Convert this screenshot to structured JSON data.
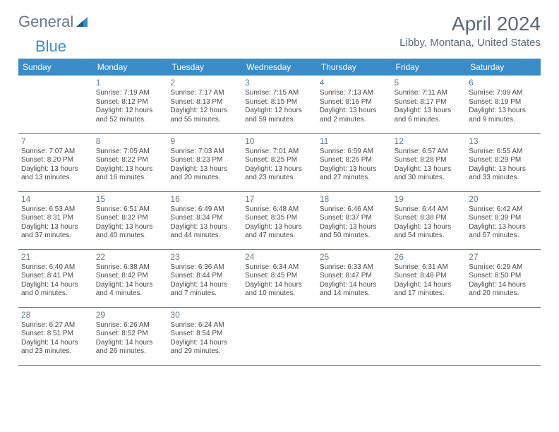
{
  "logo": {
    "text1": "General",
    "text2": "Blue"
  },
  "title": "April 2024",
  "location": "Libby, Montana, United States",
  "colors": {
    "accent": "#3a8cc9",
    "header_text": "#ffffff",
    "muted": "#6a7a88",
    "body": "#4a4a4a"
  },
  "day_headers": [
    "Sunday",
    "Monday",
    "Tuesday",
    "Wednesday",
    "Thursday",
    "Friday",
    "Saturday"
  ],
  "weeks": [
    [
      null,
      {
        "n": "1",
        "sr": "Sunrise: 7:19 AM",
        "ss": "Sunset: 8:12 PM",
        "d1": "Daylight: 12 hours",
        "d2": "and 52 minutes."
      },
      {
        "n": "2",
        "sr": "Sunrise: 7:17 AM",
        "ss": "Sunset: 8:13 PM",
        "d1": "Daylight: 12 hours",
        "d2": "and 55 minutes."
      },
      {
        "n": "3",
        "sr": "Sunrise: 7:15 AM",
        "ss": "Sunset: 8:15 PM",
        "d1": "Daylight: 12 hours",
        "d2": "and 59 minutes."
      },
      {
        "n": "4",
        "sr": "Sunrise: 7:13 AM",
        "ss": "Sunset: 8:16 PM",
        "d1": "Daylight: 13 hours",
        "d2": "and 2 minutes."
      },
      {
        "n": "5",
        "sr": "Sunrise: 7:11 AM",
        "ss": "Sunset: 8:17 PM",
        "d1": "Daylight: 13 hours",
        "d2": "and 6 minutes."
      },
      {
        "n": "6",
        "sr": "Sunrise: 7:09 AM",
        "ss": "Sunset: 8:19 PM",
        "d1": "Daylight: 13 hours",
        "d2": "and 9 minutes."
      }
    ],
    [
      {
        "n": "7",
        "sr": "Sunrise: 7:07 AM",
        "ss": "Sunset: 8:20 PM",
        "d1": "Daylight: 13 hours",
        "d2": "and 13 minutes."
      },
      {
        "n": "8",
        "sr": "Sunrise: 7:05 AM",
        "ss": "Sunset: 8:22 PM",
        "d1": "Daylight: 13 hours",
        "d2": "and 16 minutes."
      },
      {
        "n": "9",
        "sr": "Sunrise: 7:03 AM",
        "ss": "Sunset: 8:23 PM",
        "d1": "Daylight: 13 hours",
        "d2": "and 20 minutes."
      },
      {
        "n": "10",
        "sr": "Sunrise: 7:01 AM",
        "ss": "Sunset: 8:25 PM",
        "d1": "Daylight: 13 hours",
        "d2": "and 23 minutes."
      },
      {
        "n": "11",
        "sr": "Sunrise: 6:59 AM",
        "ss": "Sunset: 8:26 PM",
        "d1": "Daylight: 13 hours",
        "d2": "and 27 minutes."
      },
      {
        "n": "12",
        "sr": "Sunrise: 6:57 AM",
        "ss": "Sunset: 8:28 PM",
        "d1": "Daylight: 13 hours",
        "d2": "and 30 minutes."
      },
      {
        "n": "13",
        "sr": "Sunrise: 6:55 AM",
        "ss": "Sunset: 8:29 PM",
        "d1": "Daylight: 13 hours",
        "d2": "and 33 minutes."
      }
    ],
    [
      {
        "n": "14",
        "sr": "Sunrise: 6:53 AM",
        "ss": "Sunset: 8:31 PM",
        "d1": "Daylight: 13 hours",
        "d2": "and 37 minutes."
      },
      {
        "n": "15",
        "sr": "Sunrise: 6:51 AM",
        "ss": "Sunset: 8:32 PM",
        "d1": "Daylight: 13 hours",
        "d2": "and 40 minutes."
      },
      {
        "n": "16",
        "sr": "Sunrise: 6:49 AM",
        "ss": "Sunset: 8:34 PM",
        "d1": "Daylight: 13 hours",
        "d2": "and 44 minutes."
      },
      {
        "n": "17",
        "sr": "Sunrise: 6:48 AM",
        "ss": "Sunset: 8:35 PM",
        "d1": "Daylight: 13 hours",
        "d2": "and 47 minutes."
      },
      {
        "n": "18",
        "sr": "Sunrise: 6:46 AM",
        "ss": "Sunset: 8:37 PM",
        "d1": "Daylight: 13 hours",
        "d2": "and 50 minutes."
      },
      {
        "n": "19",
        "sr": "Sunrise: 6:44 AM",
        "ss": "Sunset: 8:38 PM",
        "d1": "Daylight: 13 hours",
        "d2": "and 54 minutes."
      },
      {
        "n": "20",
        "sr": "Sunrise: 6:42 AM",
        "ss": "Sunset: 8:39 PM",
        "d1": "Daylight: 13 hours",
        "d2": "and 57 minutes."
      }
    ],
    [
      {
        "n": "21",
        "sr": "Sunrise: 6:40 AM",
        "ss": "Sunset: 8:41 PM",
        "d1": "Daylight: 14 hours",
        "d2": "and 0 minutes."
      },
      {
        "n": "22",
        "sr": "Sunrise: 6:38 AM",
        "ss": "Sunset: 8:42 PM",
        "d1": "Daylight: 14 hours",
        "d2": "and 4 minutes."
      },
      {
        "n": "23",
        "sr": "Sunrise: 6:36 AM",
        "ss": "Sunset: 8:44 PM",
        "d1": "Daylight: 14 hours",
        "d2": "and 7 minutes."
      },
      {
        "n": "24",
        "sr": "Sunrise: 6:34 AM",
        "ss": "Sunset: 8:45 PM",
        "d1": "Daylight: 14 hours",
        "d2": "and 10 minutes."
      },
      {
        "n": "25",
        "sr": "Sunrise: 6:33 AM",
        "ss": "Sunset: 8:47 PM",
        "d1": "Daylight: 14 hours",
        "d2": "and 14 minutes."
      },
      {
        "n": "26",
        "sr": "Sunrise: 6:31 AM",
        "ss": "Sunset: 8:48 PM",
        "d1": "Daylight: 14 hours",
        "d2": "and 17 minutes."
      },
      {
        "n": "27",
        "sr": "Sunrise: 6:29 AM",
        "ss": "Sunset: 8:50 PM",
        "d1": "Daylight: 14 hours",
        "d2": "and 20 minutes."
      }
    ],
    [
      {
        "n": "28",
        "sr": "Sunrise: 6:27 AM",
        "ss": "Sunset: 8:51 PM",
        "d1": "Daylight: 14 hours",
        "d2": "and 23 minutes."
      },
      {
        "n": "29",
        "sr": "Sunrise: 6:26 AM",
        "ss": "Sunset: 8:52 PM",
        "d1": "Daylight: 14 hours",
        "d2": "and 26 minutes."
      },
      {
        "n": "30",
        "sr": "Sunrise: 6:24 AM",
        "ss": "Sunset: 8:54 PM",
        "d1": "Daylight: 14 hours",
        "d2": "and 29 minutes."
      },
      null,
      null,
      null,
      null
    ]
  ]
}
